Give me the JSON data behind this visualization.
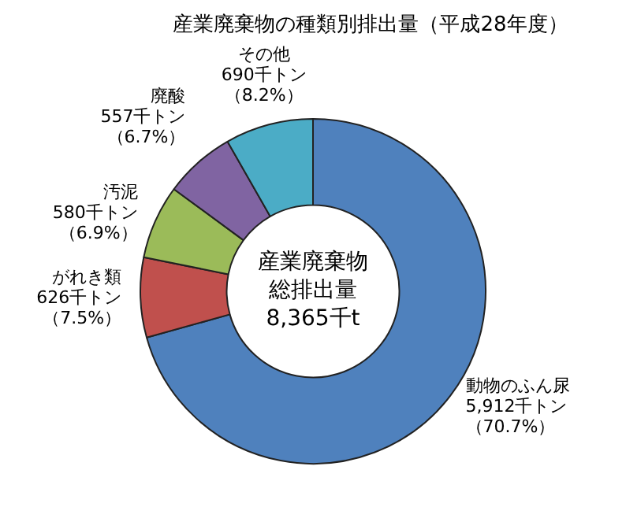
{
  "chart_data": {
    "type": "donut",
    "title": "産業廃棄物の種類別排出量（平成28年度）",
    "categories": [
      "動物のふん尿",
      "がれき類",
      "汚泥",
      "廃酸",
      "その他"
    ],
    "values": [
      5912,
      626,
      580,
      557,
      690
    ],
    "value_labels": [
      "5,912千トン（70.7%）",
      "626千トン（7.5%）",
      "580千トン（6.9%）",
      "557千トン（6.7%）",
      "690千トン（8.2%）"
    ],
    "colors": [
      "#4f81bd",
      "#c0504d",
      "#9bbb59",
      "#8064a2",
      "#4bacc6"
    ],
    "annotations": [
      "産業廃棄物",
      "総排出量",
      "8,365千t"
    ],
    "legend": false
  }
}
